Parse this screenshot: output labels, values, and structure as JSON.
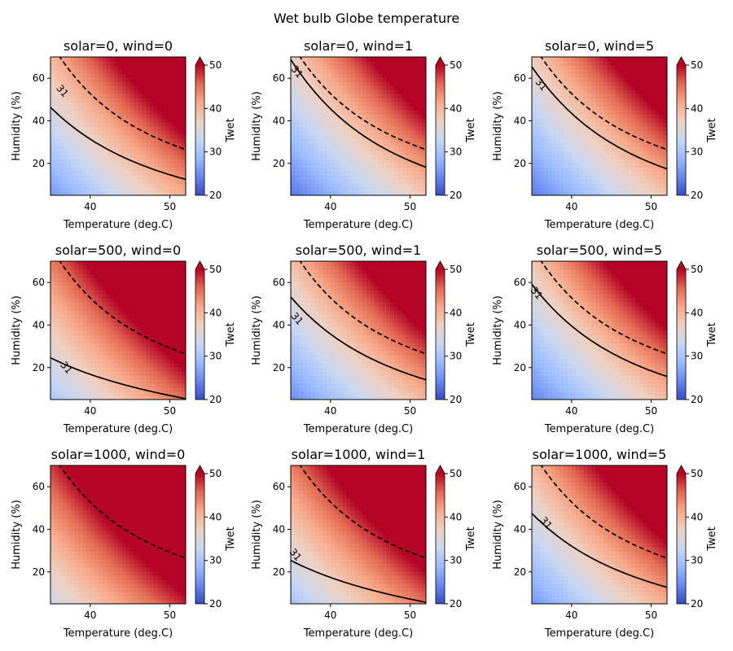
{
  "figure": {
    "title": "Wet bulb Globe temperature"
  },
  "colors": {
    "cmap": [
      "#3b4cc0",
      "#6788ee",
      "#9abbff",
      "#c9d7f0",
      "#edd1c2",
      "#f7a889",
      "#e26952",
      "#b40426"
    ],
    "over": "#b40426",
    "contour": "#000000"
  },
  "chart_data": {
    "type": "heatmap",
    "shared": {
      "xlabel": "Temperature (deg.C)",
      "ylabel": "Humidity (%)",
      "xlim": [
        35,
        52
      ],
      "ylim": [
        5,
        70
      ],
      "xticks": [
        40,
        50
      ],
      "yticks": [
        20,
        40,
        60
      ],
      "colorbar": {
        "label": "Twet",
        "range": [
          20,
          50
        ],
        "ticks": [
          20,
          30,
          40,
          50
        ],
        "extend": "max"
      },
      "contour_label": "31"
    },
    "panels": [
      {
        "title": "solar=0, wind=0",
        "solid_x0": 30.7,
        "dashed_x0": 36.5,
        "label_pos": [
          36.5,
          54
        ]
      },
      {
        "title": "solar=0, wind=1",
        "solid_x0": 35.5,
        "dashed_x0": 36.5,
        "label_pos": [
          35.8,
          63
        ]
      },
      {
        "title": "solar=0, wind=5",
        "solid_x0": 34.9,
        "dashed_x0": 36.5,
        "label_pos": [
          36.2,
          57
        ]
      },
      {
        "title": "solar=500, wind=0",
        "solid_x0": 22.5,
        "dashed_x0": 36.5,
        "label_pos": [
          37.0,
          20
        ]
      },
      {
        "title": "solar=500, wind=1",
        "solid_x0": 32.4,
        "dashed_x0": 36.5,
        "label_pos": [
          35.8,
          43
        ]
      },
      {
        "title": "solar=500, wind=5",
        "solid_x0": 33.7,
        "dashed_x0": 36.5,
        "label_pos": [
          35.6,
          55
        ]
      },
      {
        "title": "solar=1000, wind=0",
        "solid_x0": 0,
        "dashed_x0": 36.5,
        "label_pos": null
      },
      {
        "title": "solar=1000, wind=1",
        "solid_x0": 22.9,
        "dashed_x0": 36.5,
        "label_pos": [
          35.6,
          28
        ]
      },
      {
        "title": "solar=1000, wind=5",
        "solid_x0": 31.0,
        "dashed_x0": 36.5,
        "label_pos": [
          36.8,
          43
        ]
      }
    ]
  }
}
